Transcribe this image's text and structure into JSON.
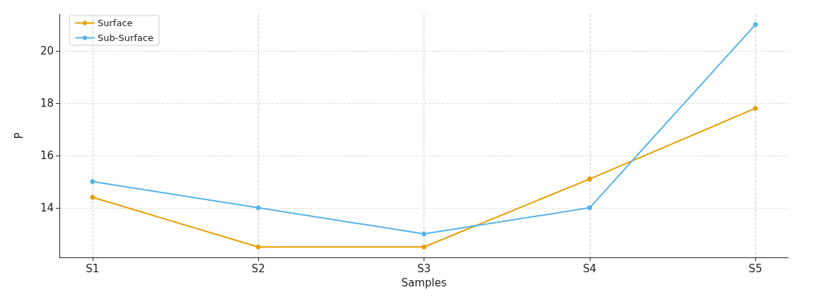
{
  "chart_data": {
    "type": "line",
    "xlabel": "Samples",
    "ylabel": "P",
    "categories": [
      "S1",
      "S2",
      "S3",
      "S4",
      "S5"
    ],
    "series": [
      {
        "name": "Surface",
        "color": "#e69f00",
        "values": [
          14.4,
          12.5,
          12.5,
          15.1,
          17.8
        ]
      },
      {
        "name": "Sub-Surface",
        "color": "#56b4e9",
        "values": [
          15.0,
          14.0,
          13.0,
          14.0,
          21.0
        ]
      }
    ],
    "ylim": [
      12.1,
      21.4
    ],
    "yticks": [
      14,
      16,
      18,
      20
    ],
    "grid": true,
    "legend": "top left",
    "marker": "circle",
    "line_style": "solid"
  }
}
